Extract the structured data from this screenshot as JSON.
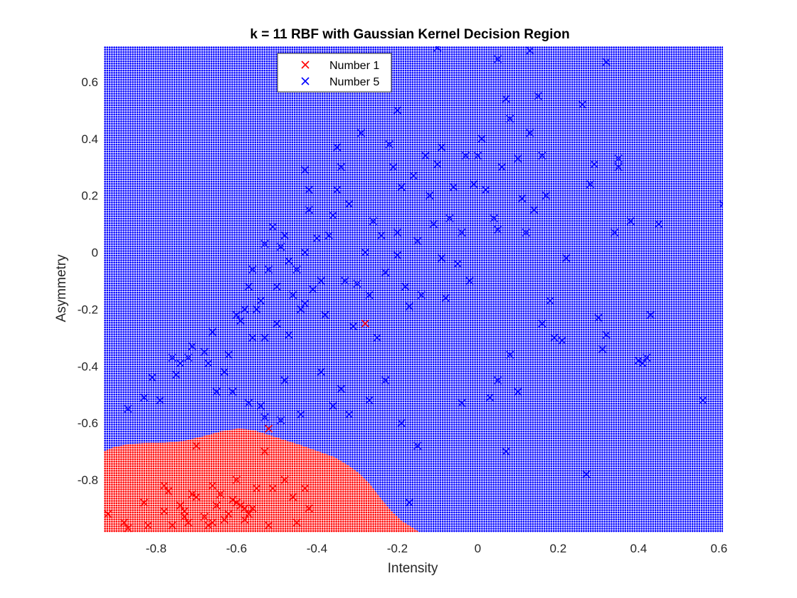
{
  "chart_data": {
    "type": "scatter",
    "title": "k = 11 RBF with Gaussian Kernel Decision Region",
    "xlabel": "Intensity",
    "ylabel": "Asymmetry",
    "xlim": [
      -0.93,
      0.61
    ],
    "ylim": [
      -0.985,
      0.725
    ],
    "xticks": [
      -0.8,
      -0.6,
      -0.4,
      -0.2,
      0,
      0.2,
      0.4,
      0.6
    ],
    "yticks": [
      -0.8,
      -0.6,
      -0.4,
      -0.2,
      0,
      0.2,
      0.4,
      0.6
    ],
    "xtick_labels": [
      "-0.8",
      "-0.6",
      "-0.4",
      "-0.2",
      "0",
      "0.2",
      "0.4",
      "0.6"
    ],
    "ytick_labels": [
      "-0.8",
      "-0.6",
      "-0.4",
      "-0.2",
      "0",
      "0.2",
      "0.4",
      "0.6"
    ],
    "legend_placement": "top-center",
    "colors": {
      "number1": "#ff0000",
      "number5": "#0000ff"
    },
    "series": [
      {
        "name": "Number 1",
        "marker": "x",
        "points": [
          [
            -0.92,
            -0.92
          ],
          [
            -0.88,
            -0.95
          ],
          [
            -0.87,
            -0.97
          ],
          [
            -0.83,
            -0.88
          ],
          [
            -0.82,
            -0.96
          ],
          [
            -0.78,
            -0.82
          ],
          [
            -0.77,
            -0.84
          ],
          [
            -0.78,
            -0.91
          ],
          [
            -0.76,
            -0.96
          ],
          [
            -0.73,
            -0.93
          ],
          [
            -0.74,
            -0.89
          ],
          [
            -0.73,
            -0.91
          ],
          [
            -0.72,
            -0.95
          ],
          [
            -0.71,
            -0.85
          ],
          [
            -0.7,
            -0.86
          ],
          [
            -0.7,
            -0.68
          ],
          [
            -0.68,
            -0.93
          ],
          [
            -0.67,
            -0.96
          ],
          [
            -0.66,
            -0.95
          ],
          [
            -0.66,
            -0.82
          ],
          [
            -0.65,
            -0.89
          ],
          [
            -0.64,
            -0.85
          ],
          [
            -0.63,
            -0.94
          ],
          [
            -0.62,
            -0.92
          ],
          [
            -0.61,
            -0.87
          ],
          [
            -0.6,
            -0.8
          ],
          [
            -0.6,
            -0.88
          ],
          [
            -0.59,
            -0.89
          ],
          [
            -0.58,
            -0.9
          ],
          [
            -0.58,
            -0.94
          ],
          [
            -0.57,
            -0.92
          ],
          [
            -0.56,
            -0.9
          ],
          [
            -0.55,
            -0.83
          ],
          [
            -0.53,
            -0.7
          ],
          [
            -0.52,
            -0.96
          ],
          [
            -0.51,
            -0.83
          ],
          [
            -0.48,
            -0.8
          ],
          [
            -0.46,
            -0.86
          ],
          [
            -0.45,
            -0.95
          ],
          [
            -0.43,
            -0.83
          ],
          [
            -0.42,
            -0.9
          ],
          [
            -0.28,
            -0.25
          ],
          [
            -0.52,
            -0.62
          ]
        ]
      },
      {
        "name": "Number 5",
        "marker": "x",
        "points": [
          [
            -0.87,
            -0.55
          ],
          [
            -0.83,
            -0.51
          ],
          [
            -0.81,
            -0.44
          ],
          [
            -0.79,
            -0.52
          ],
          [
            -0.76,
            -0.37
          ],
          [
            -0.75,
            -0.43
          ],
          [
            -0.74,
            -0.39
          ],
          [
            -0.72,
            -0.37
          ],
          [
            -0.71,
            -0.33
          ],
          [
            -0.68,
            -0.35
          ],
          [
            -0.67,
            -0.39
          ],
          [
            -0.66,
            -0.28
          ],
          [
            -0.65,
            -0.49
          ],
          [
            -0.63,
            -0.42
          ],
          [
            -0.62,
            -0.36
          ],
          [
            -0.61,
            -0.49
          ],
          [
            -0.6,
            -0.22
          ],
          [
            -0.59,
            -0.24
          ],
          [
            -0.58,
            -0.2
          ],
          [
            -0.57,
            -0.12
          ],
          [
            -0.56,
            -0.3
          ],
          [
            -0.56,
            -0.06
          ],
          [
            -0.55,
            -0.2
          ],
          [
            -0.54,
            -0.17
          ],
          [
            -0.53,
            0.03
          ],
          [
            -0.53,
            -0.3
          ],
          [
            -0.52,
            -0.06
          ],
          [
            -0.51,
            0.09
          ],
          [
            -0.5,
            -0.12
          ],
          [
            -0.5,
            -0.25
          ],
          [
            -0.49,
            0.02
          ],
          [
            -0.48,
            0.06
          ],
          [
            -0.47,
            -0.03
          ],
          [
            -0.46,
            -0.15
          ],
          [
            -0.45,
            -0.06
          ],
          [
            -0.44,
            -0.2
          ],
          [
            -0.43,
            0.0
          ],
          [
            -0.43,
            0.29
          ],
          [
            -0.42,
            0.22
          ],
          [
            -0.42,
            0.15
          ],
          [
            -0.41,
            -0.13
          ],
          [
            -0.4,
            0.05
          ],
          [
            -0.39,
            -0.1
          ],
          [
            -0.38,
            -0.22
          ],
          [
            -0.37,
            0.06
          ],
          [
            -0.36,
            0.13
          ],
          [
            -0.35,
            0.37
          ],
          [
            -0.35,
            0.22
          ],
          [
            -0.34,
            0.3
          ],
          [
            -0.33,
            -0.1
          ],
          [
            -0.32,
            0.17
          ],
          [
            -0.31,
            -0.26
          ],
          [
            -0.3,
            -0.11
          ],
          [
            -0.29,
            0.42
          ],
          [
            -0.28,
            0.0
          ],
          [
            -0.27,
            -0.15
          ],
          [
            -0.26,
            0.11
          ],
          [
            -0.25,
            -0.3
          ],
          [
            -0.24,
            0.06
          ],
          [
            -0.23,
            -0.07
          ],
          [
            -0.22,
            0.38
          ],
          [
            -0.21,
            0.3
          ],
          [
            -0.2,
            0.07
          ],
          [
            -0.2,
            -0.01
          ],
          [
            -0.19,
            0.23
          ],
          [
            -0.18,
            -0.12
          ],
          [
            -0.17,
            -0.19
          ],
          [
            -0.16,
            0.27
          ],
          [
            -0.15,
            0.04
          ],
          [
            -0.14,
            -0.15
          ],
          [
            -0.13,
            0.34
          ],
          [
            -0.12,
            0.2
          ],
          [
            -0.11,
            0.1
          ],
          [
            -0.1,
            0.31
          ],
          [
            -0.09,
            0.37
          ],
          [
            -0.09,
            -0.02
          ],
          [
            -0.08,
            -0.16
          ],
          [
            -0.07,
            0.12
          ],
          [
            -0.06,
            0.23
          ],
          [
            -0.05,
            -0.04
          ],
          [
            -0.04,
            0.07
          ],
          [
            -0.03,
            0.34
          ],
          [
            -0.02,
            -0.1
          ],
          [
            -0.01,
            0.24
          ],
          [
            0.0,
            0.34
          ],
          [
            0.01,
            0.4
          ],
          [
            0.02,
            0.22
          ],
          [
            0.04,
            0.12
          ],
          [
            0.05,
            0.08
          ],
          [
            0.06,
            0.3
          ],
          [
            0.07,
            0.54
          ],
          [
            0.08,
            0.47
          ],
          [
            0.1,
            0.33
          ],
          [
            0.11,
            0.19
          ],
          [
            0.12,
            0.07
          ],
          [
            0.13,
            0.42
          ],
          [
            0.14,
            0.15
          ],
          [
            0.15,
            0.55
          ],
          [
            0.16,
            0.34
          ],
          [
            0.17,
            0.2
          ],
          [
            -0.43,
            -0.18
          ],
          [
            -0.47,
            -0.29
          ],
          [
            -0.48,
            -0.45
          ],
          [
            -0.49,
            -0.59
          ],
          [
            -0.53,
            -0.58
          ],
          [
            -0.54,
            -0.54
          ],
          [
            -0.57,
            -0.53
          ],
          [
            -0.44,
            -0.57
          ],
          [
            -0.39,
            -0.42
          ],
          [
            -0.36,
            -0.54
          ],
          [
            -0.34,
            -0.48
          ],
          [
            -0.32,
            -0.57
          ],
          [
            -0.27,
            -0.52
          ],
          [
            -0.23,
            -0.45
          ],
          [
            -0.19,
            -0.6
          ],
          [
            -0.15,
            -0.68
          ],
          [
            -0.17,
            -0.88
          ],
          [
            -0.04,
            -0.53
          ],
          [
            0.03,
            -0.51
          ],
          [
            0.05,
            -0.45
          ],
          [
            0.07,
            -0.7
          ],
          [
            0.08,
            -0.36
          ],
          [
            0.1,
            -0.49
          ],
          [
            0.16,
            -0.25
          ],
          [
            0.18,
            -0.17
          ],
          [
            0.19,
            -0.3
          ],
          [
            0.21,
            -0.31
          ],
          [
            0.22,
            -0.02
          ],
          [
            0.26,
            0.52
          ],
          [
            0.27,
            -0.78
          ],
          [
            0.28,
            0.24
          ],
          [
            0.29,
            0.31
          ],
          [
            0.3,
            -0.23
          ],
          [
            0.31,
            -0.34
          ],
          [
            0.32,
            0.67
          ],
          [
            0.32,
            -0.29
          ],
          [
            0.34,
            0.07
          ],
          [
            0.35,
            0.33
          ],
          [
            0.35,
            0.3
          ],
          [
            0.38,
            0.11
          ],
          [
            0.4,
            -0.38
          ],
          [
            0.41,
            -0.39
          ],
          [
            0.42,
            -0.37
          ],
          [
            0.43,
            -0.22
          ],
          [
            0.45,
            0.1
          ],
          [
            0.56,
            -0.52
          ],
          [
            0.61,
            0.17
          ],
          [
            -0.1,
            0.72
          ],
          [
            0.05,
            0.68
          ],
          [
            0.13,
            0.71
          ],
          [
            -0.2,
            0.5
          ]
        ]
      }
    ]
  }
}
